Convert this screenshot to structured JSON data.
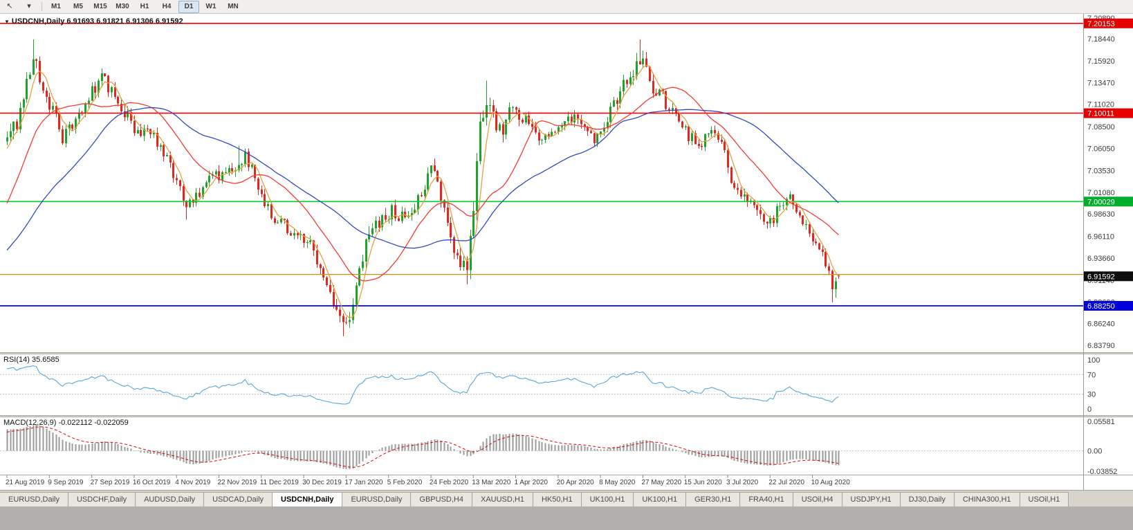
{
  "toolbar": {
    "cursor_icon": "↖",
    "dropdown_icon": "▾",
    "timeframes": [
      "M1",
      "M5",
      "M15",
      "M30",
      "H1",
      "H4",
      "D1",
      "W1",
      "MN"
    ],
    "active_timeframe": "D1"
  },
  "chart": {
    "symbol": "USDCNH",
    "period": "Daily",
    "collapse_icon": "▼",
    "header_text": "USDCNH,Daily 6.91693 6.91821 6.91306 6.91592",
    "ohlc": {
      "open": "6.91693",
      "high": "6.91821",
      "low": "6.91306",
      "close": "6.91592"
    }
  },
  "price_axis": {
    "labels": [
      "7.20890",
      "7.18440",
      "7.15920",
      "7.13470",
      "7.11020",
      "7.08500",
      "7.06050",
      "7.03530",
      "7.01080",
      "6.98630",
      "6.96110",
      "6.93660",
      "6.91140",
      "6.88690",
      "6.86240",
      "6.83790"
    ],
    "current_price": {
      "text": "6.91592",
      "bg": "#0d0d0d",
      "fg": "#ffffff"
    }
  },
  "hlines": [
    {
      "price": 7.20153,
      "color": "#ff0000",
      "width": 1.6,
      "label": "7.20153",
      "label_bg": "#e60000"
    },
    {
      "price": 7.10011,
      "color": "#ff0000",
      "width": 1.6,
      "label": "7.10011",
      "label_bg": "#e60000"
    },
    {
      "price": 7.00029,
      "color": "#00cc2a",
      "width": 1.6,
      "label": "7.00029",
      "label_bg": "#00ae2c"
    },
    {
      "price": 6.918,
      "color": "#c68e17",
      "width": 1.3,
      "label": null,
      "label_bg": null
    },
    {
      "price": 6.8825,
      "color": "#0000ee",
      "width": 1.8,
      "label": "6.88250",
      "label_bg": "#0000dd"
    }
  ],
  "date_axis": {
    "labels": [
      "21 Aug 2019",
      "9 Sep 2019",
      "27 Sep 2019",
      "16 Oct 2019",
      "4 Nov 2019",
      "22 Nov 2019",
      "11 Dec 2019",
      "30 Dec 2019",
      "17 Jan 2020",
      "5 Feb 2020",
      "24 Feb 2020",
      "13 Mar 2020",
      "1 Apr 2020",
      "20 Apr 2020",
      "8 May 2020",
      "27 May 2020",
      "15 Jun 2020",
      "3 Jul 2020",
      "22 Jul 2020",
      "10 Aug 2020"
    ],
    "days_per_label": 13
  },
  "rsi": {
    "label_text": "RSI(14) 35.6585",
    "period": 14,
    "value": "35.6585",
    "line_color": "#58a6dc",
    "levels": [
      {
        "text": "100",
        "v": 100,
        "dashed": false
      },
      {
        "text": "70",
        "v": 70,
        "dashed": true
      },
      {
        "text": "30",
        "v": 30,
        "dashed": true
      },
      {
        "text": "0",
        "v": 0,
        "dashed": false
      }
    ]
  },
  "macd": {
    "label_text": "MACD(12,26,9) -0.022112 -0.022059",
    "params": "12,26,9",
    "main_value": "-0.022112",
    "signal_value": "-0.022059",
    "hist_color": "#9a9a9a",
    "signal_color": "#e00000",
    "vmax": 0.05581,
    "vmin": -0.03852,
    "levels": [
      {
        "text": "0.05581",
        "v": 0.05581
      },
      {
        "text": "0.00",
        "v": 0
      },
      {
        "text": "-0.03852",
        "v": -0.03852
      }
    ]
  },
  "tabs": [
    "EURUSD,Daily",
    "USDCHF,Daily",
    "AUDUSD,Daily",
    "USDCAD,Daily",
    "USDCNH,Daily",
    "EURUSD,Daily",
    "GBPUSD,H4",
    "XAUUSD,H1",
    "HK50,H1",
    "UK100,H1",
    "UK100,H1",
    "GER30,H1",
    "FRA40,H1",
    "USOil,H4",
    "USDJPY,H1",
    "DJ30,Daily",
    "CHINA300,H1",
    "USOil,H1"
  ],
  "active_tab_index": 4,
  "colors": {
    "up": "#1fa32c",
    "down": "#e3271e",
    "ma_fast": "#e3a23c",
    "ma_mid": "#f23c32",
    "ma_slow": "#3149c3",
    "axis_text": "#3a3a3a",
    "bg": "#ffffff"
  },
  "chart_data": {
    "type": "candlestick",
    "symbol": "USDCNH",
    "timeframe": "Daily",
    "title": "USDCNH,Daily",
    "x_range": [
      "21 Aug 2019",
      "21 Aug 2020"
    ],
    "price_range_shown": [
      6.8379,
      7.2089
    ],
    "visible_bars": 256,
    "warmup_start": -60,
    "seed": 20200821,
    "x0": 10,
    "bar_spacing": 4.715,
    "scale": {
      "price_max": 7.21,
      "price_min": 6.8325
    },
    "price_anchors": [
      [
        -60,
        6.88
      ],
      [
        -45,
        6.885
      ],
      [
        -35,
        6.9
      ],
      [
        -16,
        6.92
      ],
      [
        -12,
        6.975
      ],
      [
        -9,
        7.03
      ],
      [
        -6,
        7.055
      ],
      [
        -3,
        7.06
      ],
      [
        0,
        7.062
      ],
      [
        3,
        7.09
      ],
      [
        6,
        7.13
      ],
      [
        8,
        7.165
      ],
      [
        10,
        7.14
      ],
      [
        14,
        7.1
      ],
      [
        17,
        7.075
      ],
      [
        21,
        7.09
      ],
      [
        25,
        7.12
      ],
      [
        29,
        7.14
      ],
      [
        33,
        7.118
      ],
      [
        37,
        7.095
      ],
      [
        40,
        7.075
      ],
      [
        44,
        7.082
      ],
      [
        48,
        7.055
      ],
      [
        52,
        7.02
      ],
      [
        55,
        6.992
      ],
      [
        58,
        7.005
      ],
      [
        62,
        7.025
      ],
      [
        66,
        7.03
      ],
      [
        70,
        7.04
      ],
      [
        73,
        7.052
      ],
      [
        76,
        7.03
      ],
      [
        79,
        7.0
      ],
      [
        82,
        6.982
      ],
      [
        86,
        6.97
      ],
      [
        89,
        6.962
      ],
      [
        92,
        6.958
      ],
      [
        95,
        6.935
      ],
      [
        98,
        6.905
      ],
      [
        100,
        6.88
      ],
      [
        103,
        6.855
      ],
      [
        105,
        6.868
      ],
      [
        108,
        6.93
      ],
      [
        111,
        6.965
      ],
      [
        114,
        6.978
      ],
      [
        118,
        6.99
      ],
      [
        122,
        6.98
      ],
      [
        126,
        7.0
      ],
      [
        128,
        7.02
      ],
      [
        131,
        7.04
      ],
      [
        134,
        6.99
      ],
      [
        137,
        6.95
      ],
      [
        139,
        6.93
      ],
      [
        141,
        6.918
      ],
      [
        143,
        7.0
      ],
      [
        145,
        7.08
      ],
      [
        147,
        7.115
      ],
      [
        149,
        7.1
      ],
      [
        151,
        7.082
      ],
      [
        153,
        7.09
      ],
      [
        155,
        7.105
      ],
      [
        158,
        7.095
      ],
      [
        161,
        7.08
      ],
      [
        164,
        7.07
      ],
      [
        168,
        7.08
      ],
      [
        171,
        7.09
      ],
      [
        174,
        7.095
      ],
      [
        177,
        7.088
      ],
      [
        180,
        7.07
      ],
      [
        182,
        7.078
      ],
      [
        185,
        7.1
      ],
      [
        188,
        7.125
      ],
      [
        191,
        7.148
      ],
      [
        194,
        7.163
      ],
      [
        196,
        7.15
      ],
      [
        198,
        7.13
      ],
      [
        201,
        7.118
      ],
      [
        204,
        7.1
      ],
      [
        207,
        7.082
      ],
      [
        210,
        7.072
      ],
      [
        213,
        7.068
      ],
      [
        216,
        7.078
      ],
      [
        219,
        7.068
      ],
      [
        222,
        7.02
      ],
      [
        225,
        7.002
      ],
      [
        228,
        7.0
      ],
      [
        231,
        6.992
      ],
      [
        233,
        6.972
      ],
      [
        236,
        6.988
      ],
      [
        239,
        7.008
      ],
      [
        242,
        6.99
      ],
      [
        245,
        6.968
      ],
      [
        247,
        6.952
      ],
      [
        250,
        6.938
      ],
      [
        252,
        6.925
      ],
      [
        253,
        6.906
      ],
      [
        254,
        6.912
      ],
      [
        255,
        6.916
      ]
    ],
    "volatility_anchors": [
      [
        -60,
        0.005
      ],
      [
        -12,
        0.012
      ],
      [
        0,
        0.011
      ],
      [
        20,
        0.009
      ],
      [
        50,
        0.007
      ],
      [
        70,
        0.008
      ],
      [
        90,
        0.006
      ],
      [
        100,
        0.009
      ],
      [
        108,
        0.011
      ],
      [
        126,
        0.008
      ],
      [
        137,
        0.011
      ],
      [
        145,
        0.014
      ],
      [
        152,
        0.01
      ],
      [
        165,
        0.006
      ],
      [
        182,
        0.007
      ],
      [
        192,
        0.011
      ],
      [
        200,
        0.008
      ],
      [
        215,
        0.006
      ],
      [
        222,
        0.008
      ],
      [
        235,
        0.007
      ],
      [
        248,
        0.007
      ],
      [
        255,
        0.005
      ]
    ],
    "wick_spikes": [
      [
        8,
        0.014
      ],
      [
        55,
        -0.008
      ],
      [
        71,
        0.018
      ],
      [
        103,
        -0.01
      ],
      [
        141,
        -0.01
      ],
      [
        147,
        0.022
      ],
      [
        194,
        0.024
      ],
      [
        253,
        -0.01
      ],
      [
        254,
        -0.008
      ]
    ],
    "last_bar": {
      "open": 6.91693,
      "high": 6.91821,
      "low": 6.91306,
      "close": 6.91592
    },
    "moving_averages": [
      {
        "period": 5,
        "color_key": "ma_fast"
      },
      {
        "period": 20,
        "color_key": "ma_mid"
      },
      {
        "period": 45,
        "color_key": "ma_slow"
      }
    ],
    "indicators": {
      "rsi_period": 14,
      "macd": [
        12,
        26,
        9
      ]
    },
    "horizontal_levels": [
      7.20153,
      7.10011,
      7.00029,
      6.918,
      6.8825
    ]
  }
}
